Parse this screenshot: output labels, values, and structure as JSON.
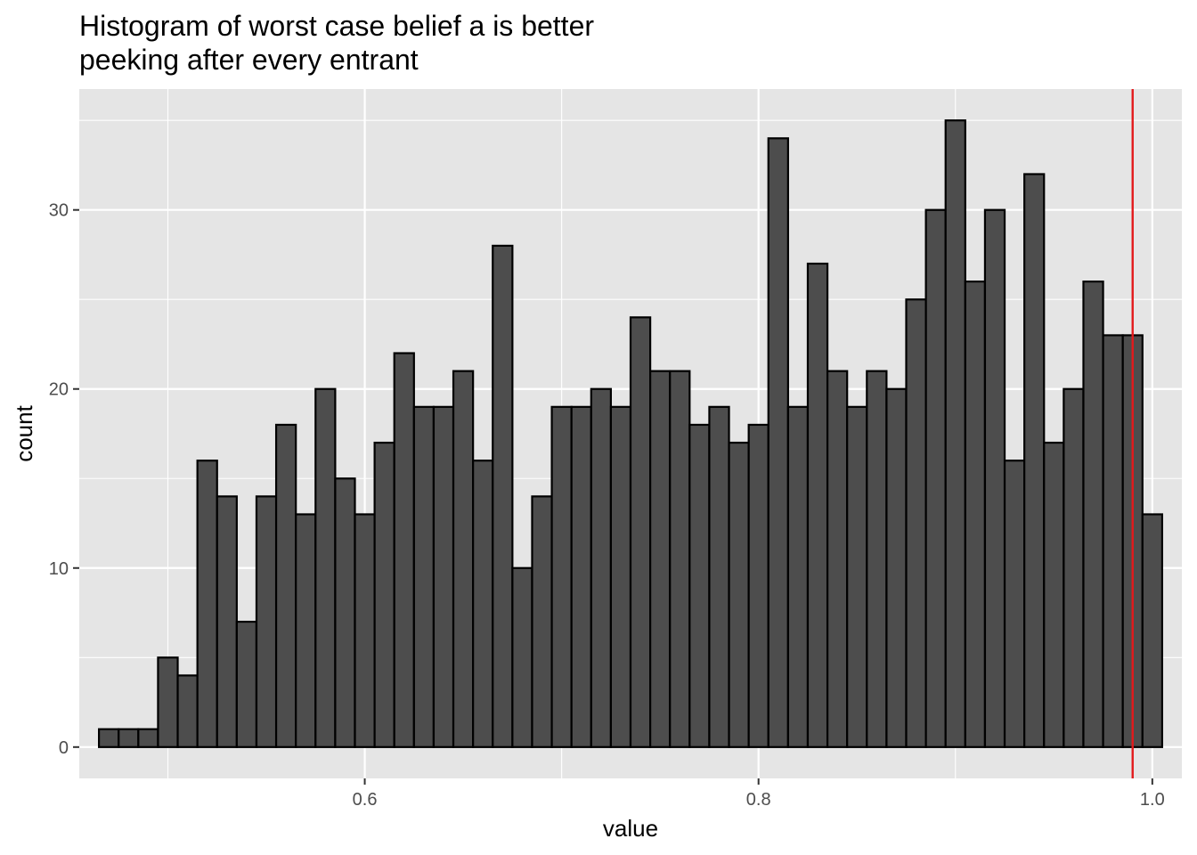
{
  "chart_data": {
    "type": "bar",
    "title_lines": [
      "Histogram of worst case belief a is better",
      "peeking after every entrant"
    ],
    "xlabel": "value",
    "ylabel": "count",
    "xlim": [
      0.455,
      1.015
    ],
    "ylim": [
      -1.75,
      36.75
    ],
    "x_ticks": [
      0.6,
      0.8,
      1.0
    ],
    "x_tick_labels": [
      "0.6",
      "0.8",
      "1.0"
    ],
    "y_ticks": [
      0,
      10,
      20,
      30
    ],
    "y_tick_labels": [
      "0",
      "10",
      "20",
      "30"
    ],
    "grid": true,
    "panel_color": "#e5e5e5",
    "grid_color": "#ffffff",
    "bar_fill": "#4d4d4d",
    "bar_edge": "#000000",
    "reference_line": {
      "x": 0.99,
      "color": "#e31a1c"
    },
    "bin_start": 0.465,
    "bin_width": 0.01,
    "counts": [
      1,
      1,
      1,
      5,
      4,
      16,
      14,
      7,
      14,
      18,
      13,
      20,
      15,
      13,
      17,
      22,
      19,
      19,
      21,
      16,
      28,
      10,
      14,
      19,
      19,
      20,
      19,
      24,
      21,
      21,
      18,
      19,
      17,
      18,
      34,
      19,
      27,
      21,
      19,
      21,
      20,
      25,
      30,
      35,
      26,
      30,
      16,
      32,
      17,
      20,
      26,
      23,
      23,
      13
    ]
  }
}
